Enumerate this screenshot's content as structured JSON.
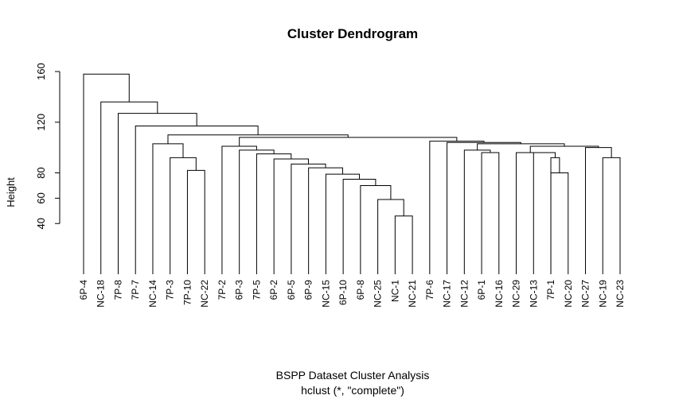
{
  "chart_data": {
    "type": "dendrogram",
    "title": "Cluster Dendrogram",
    "ylabel": "Height",
    "xlabel": "BSPP Dataset Cluster Analysis",
    "sub": "hclust (*, \"complete\")",
    "yticks": [
      40,
      60,
      80,
      120,
      160
    ],
    "ylim": [
      0,
      160
    ],
    "leaves": [
      "6P-4",
      "NC-18",
      "7P-8",
      "7P-7",
      "NC-14",
      "7P-3",
      "7P-10",
      "NC-22",
      "7P-2",
      "6P-3",
      "7P-5",
      "6P-2",
      "6P-5",
      "6P-9",
      "NC-15",
      "6P-10",
      "6P-8",
      "NC-25",
      "NC-1",
      "NC-21",
      "7P-6",
      "NC-17",
      "NC-12",
      "6P-1",
      "NC-16",
      "NC-29",
      "NC-13",
      "7P-1",
      "NC-20",
      "NC-27",
      "NC-19",
      "NC-23"
    ],
    "merges": [
      {
        "a": "NC-1",
        "b": "NC-21",
        "height": 46
      },
      {
        "a": "NC-25",
        "b": 0,
        "height": 59
      },
      {
        "a": "6P-8",
        "b": 1,
        "height": 70
      },
      {
        "a": "6P-10",
        "b": 2,
        "height": 75
      },
      {
        "a": "NC-15",
        "b": 3,
        "height": 79
      },
      {
        "a": "6P-9",
        "b": 4,
        "height": 84
      },
      {
        "a": "6P-5",
        "b": 5,
        "height": 87
      },
      {
        "a": "6P-2",
        "b": 6,
        "height": 91
      },
      {
        "a": "7P-5",
        "b": 7,
        "height": 95
      },
      {
        "a": "6P-3",
        "b": 8,
        "height": 98
      },
      {
        "a": "7P-2",
        "b": 9,
        "height": 101
      },
      {
        "a": "7P-10",
        "b": "NC-22",
        "height": 82
      },
      {
        "a": "7P-3",
        "b": 11,
        "height": 92
      },
      {
        "a": "NC-14",
        "b": 12,
        "height": 103
      },
      {
        "a": "6P-1",
        "b": "NC-16",
        "height": 96
      },
      {
        "a": "NC-12",
        "b": 14,
        "height": 98
      },
      {
        "a": "7P-1",
        "b": "NC-20",
        "height": 80
      },
      {
        "a": "7P-1",
        "b": 16,
        "height": 92
      },
      {
        "a": "NC-13",
        "b": 17,
        "height": 96
      },
      {
        "a": "NC-29",
        "b": 18,
        "height": 96
      },
      {
        "a": "NC-19",
        "b": "NC-23",
        "height": 92
      },
      {
        "a": "NC-27",
        "b": 20,
        "height": 100
      },
      {
        "a": 19,
        "b": 21,
        "height": 101
      },
      {
        "a": 15,
        "b": 22,
        "height": 103
      },
      {
        "a": "NC-17",
        "b": 23,
        "height": 104
      },
      {
        "a": "7P-6",
        "b": 24,
        "height": 105
      },
      {
        "a": 10,
        "b": 25,
        "height": 108
      },
      {
        "a": 13,
        "b": 26,
        "height": 110
      },
      {
        "a": "7P-7",
        "b": 27,
        "height": 117
      },
      {
        "a": "7P-8",
        "b": 28,
        "height": 127
      },
      {
        "a": "NC-18",
        "b": 29,
        "height": 136
      },
      {
        "a": "6P-4",
        "b": 30,
        "height": 158
      }
    ]
  }
}
